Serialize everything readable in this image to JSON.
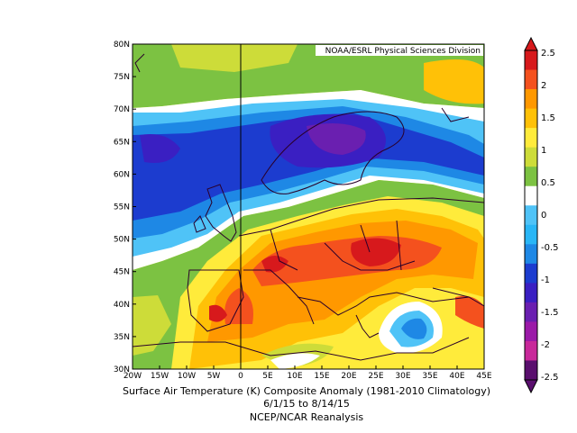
{
  "map": {
    "credit": "NOAA/ESRL Physical Sciences Division",
    "lat_labels": [
      "80N",
      "75N",
      "70N",
      "65N",
      "60N",
      "55N",
      "50N",
      "45N",
      "40N",
      "35N",
      "30N"
    ],
    "lon_labels": [
      "20W",
      "15W",
      "10W",
      "5W",
      "0",
      "5E",
      "10E",
      "15E",
      "20E",
      "25E",
      "30E",
      "35E",
      "40E",
      "45E"
    ],
    "extent": {
      "lon": [
        -20,
        45
      ],
      "lat": [
        30,
        80
      ]
    }
  },
  "colorbar": {
    "labels": [
      "2.5",
      "2",
      "1.5",
      "1",
      "0.5",
      "0",
      "-0.5",
      "-1",
      "-1.5",
      "-2",
      "-2.5"
    ],
    "colors": [
      "#d7191c",
      "#f4511e",
      "#ff9800",
      "#ffc107",
      "#ffeb3b",
      "#cddc39",
      "#7cc242",
      "#ffffff",
      "#4fc3f7",
      "#29b6f6",
      "#1e88e5",
      "#1c3ccf",
      "#3a1fc2",
      "#6a1fb0",
      "#9b1aa8",
      "#c8289a",
      "#5a0f6e"
    ]
  },
  "caption": {
    "line1": "Surface Air Temperature (K) Composite Anomaly (1981-2010 Climatology)",
    "line2": "6/1/15  to 8/14/15",
    "line3": "NCEP/NCAR Reanalysis"
  }
}
